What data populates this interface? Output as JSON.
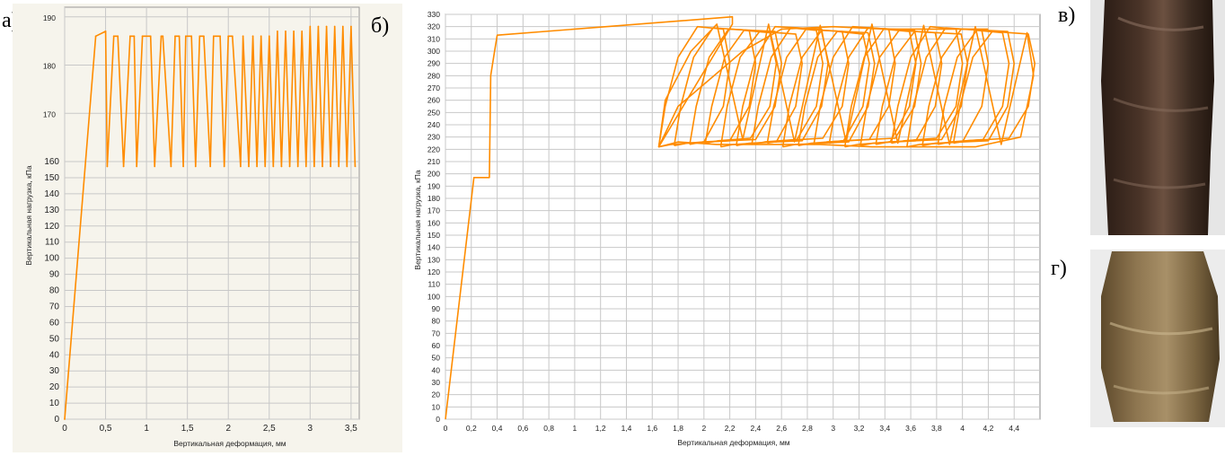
{
  "panels": {
    "a_label": "а)",
    "b_label": "б)",
    "v_label": "в)",
    "g_label": "г)"
  },
  "colors": {
    "series": "#ff8c00",
    "plot_bg_a": "#f6f4ec",
    "plot_bg_b": "#ffffff",
    "grid": "#c8c8c8",
    "sample_dark": "#3a2a20",
    "sample_light": "#8a7248"
  },
  "chart_data": [
    {
      "id": "a",
      "type": "line",
      "xlabel": "Вертикальная деформация, мм",
      "ylabel": "Вертикальная нагрузка, кПа",
      "x_ticks": [
        "0",
        "0,5",
        "1",
        "1,5",
        "2",
        "2,5",
        "3",
        "3,5"
      ],
      "x_tick_values": [
        0,
        0.5,
        1,
        1.5,
        2,
        2.5,
        3,
        3.5
      ],
      "xlim": [
        0,
        3.6
      ],
      "y_ticks_lower": [
        "0",
        "10",
        "20",
        "30",
        "40",
        "50",
        "60",
        "70",
        "80",
        "90",
        "100",
        "110",
        "120",
        "130",
        "140",
        "150",
        "160"
      ],
      "y_ticks_lower_values": [
        0,
        10,
        20,
        30,
        40,
        50,
        60,
        70,
        80,
        90,
        100,
        110,
        120,
        130,
        140,
        150,
        160
      ],
      "y_ticks_upper": [
        "170",
        "180",
        "190"
      ],
      "y_ticks_upper_values": [
        170,
        180,
        190
      ],
      "ylim": [
        0,
        190
      ],
      "axis_break": true,
      "grid": true,
      "series": [
        {
          "x": [
            0,
            0.38,
            0.5,
            0.52,
            0.6,
            0.65,
            0.72,
            0.8,
            0.85,
            0.88,
            0.95,
            1.05,
            1.1,
            1.18,
            1.2,
            1.3,
            1.35,
            1.4,
            1.45,
            1.48,
            1.55,
            1.6,
            1.65,
            1.7,
            1.78,
            1.82,
            1.9,
            1.95,
            2.0,
            2.05,
            2.15,
            2.18,
            2.25,
            2.3,
            2.35,
            2.4,
            2.45,
            2.5,
            2.55,
            2.6,
            2.65,
            2.7,
            2.75,
            2.8,
            2.85,
            2.9,
            2.95,
            3.0,
            3.05,
            3.1,
            3.15,
            3.2,
            3.25,
            3.3,
            3.35,
            3.4,
            3.45,
            3.5,
            3.55
          ],
          "y": [
            0,
            186,
            187,
            157,
            186,
            186,
            157,
            186,
            186,
            157,
            186,
            186,
            157,
            186,
            186,
            157,
            186,
            186,
            157,
            186,
            186,
            157,
            186,
            186,
            157,
            186,
            186,
            157,
            186,
            186,
            157,
            186,
            157,
            186,
            157,
            186,
            157,
            186,
            157,
            187,
            157,
            187,
            157,
            187,
            157,
            187,
            157,
            188,
            157,
            188,
            157,
            188,
            157,
            188,
            157,
            188,
            157,
            188,
            157
          ]
        }
      ]
    },
    {
      "id": "b",
      "type": "line",
      "xlabel": "Вертикальная деформация, мм",
      "ylabel": "Вертикальная нагрузка, кПа",
      "x_ticks": [
        "0",
        "0,2",
        "0,4",
        "0,6",
        "0,8",
        "1",
        "1,2",
        "1,4",
        "1,6",
        "1,8",
        "2",
        "2,2",
        "2,4",
        "2,6",
        "2,8",
        "3",
        "3,2",
        "3,4",
        "3,6",
        "3,8",
        "4",
        "4,2",
        "4,4"
      ],
      "x_tick_values": [
        0,
        0.2,
        0.4,
        0.6,
        0.8,
        1,
        1.2,
        1.4,
        1.6,
        1.8,
        2,
        2.2,
        2.4,
        2.6,
        2.8,
        3,
        3.2,
        3.4,
        3.6,
        3.8,
        4,
        4.2,
        4.4
      ],
      "xlim": [
        0,
        4.6
      ],
      "y_ticks": [
        "0",
        "10",
        "20",
        "30",
        "40",
        "50",
        "60",
        "70",
        "80",
        "90",
        "100",
        "110",
        "120",
        "130",
        "140",
        "150",
        "160",
        "170",
        "180",
        "190",
        "200",
        "210",
        "220",
        "230",
        "240",
        "250",
        "260",
        "270",
        "280",
        "290",
        "300",
        "310",
        "320",
        "330"
      ],
      "y_tick_values": [
        0,
        10,
        20,
        30,
        40,
        50,
        60,
        70,
        80,
        90,
        100,
        110,
        120,
        130,
        140,
        150,
        160,
        170,
        180,
        190,
        200,
        210,
        220,
        230,
        240,
        250,
        260,
        270,
        280,
        290,
        300,
        310,
        320,
        330
      ],
      "ylim": [
        0,
        330
      ],
      "grid": true,
      "series": [
        {
          "x": [
            0,
            0.22,
            0.25,
            0.34,
            0.35,
            0.38,
            0.4,
            2.22,
            2.22,
            1.65,
            1.7,
            1.9,
            2.1,
            2.3,
            2.5,
            2.7,
            2.9,
            3.1,
            3.3,
            3.5,
            3.7,
            3.9,
            4.1,
            4.3,
            4.5,
            4.55,
            4.45,
            4.1,
            3.7,
            3.3,
            2.9,
            2.5,
            2.1,
            1.8,
            1.65,
            1.8,
            2.3,
            2.6,
            3.0,
            3.4,
            3.8,
            4.2
          ],
          "y": [
            0,
            197,
            197,
            197,
            280,
            300,
            313,
            328,
            322,
            222,
            260,
            300,
            322,
            228,
            322,
            226,
            321,
            226,
            322,
            225,
            321,
            224,
            320,
            224,
            315,
            280,
            230,
            222,
            222,
            222,
            224,
            224,
            224,
            226,
            222,
            255,
            300,
            318,
            320,
            318,
            318,
            318
          ]
        }
      ]
    }
  ],
  "photos": [
    {
      "id": "v",
      "icon": "dark-soil-sample-photo"
    },
    {
      "id": "g",
      "icon": "light-soil-sample-photo"
    }
  ]
}
